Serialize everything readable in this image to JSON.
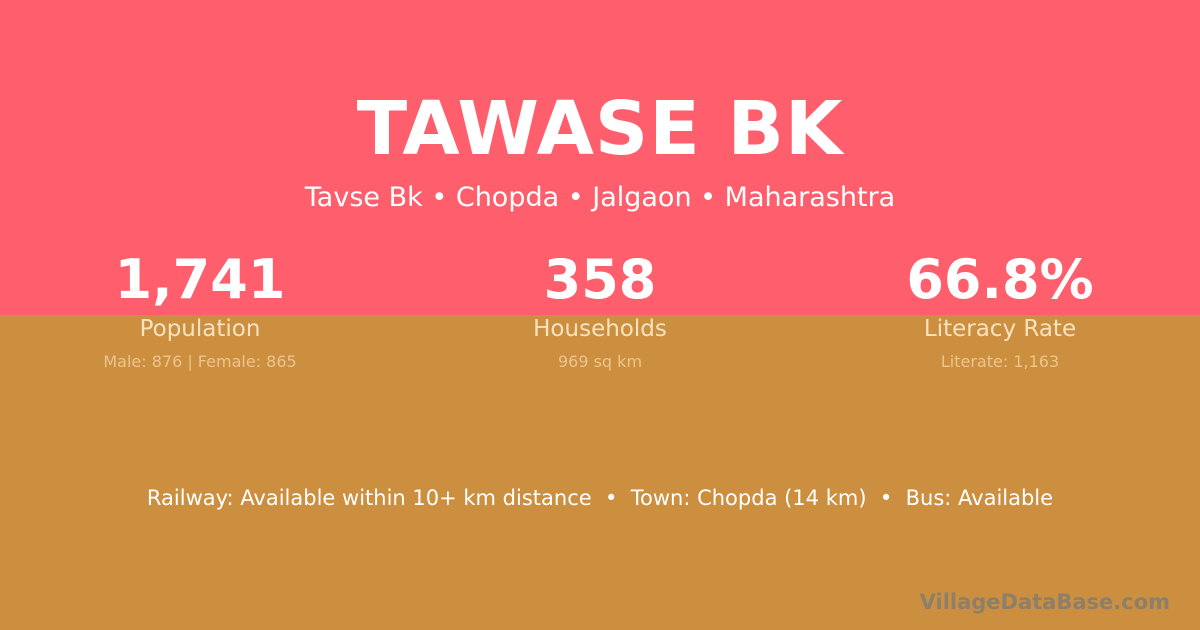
{
  "header": {
    "title": "TAWASE BK",
    "subtitle": "Tavse Bk • Chopda • Jalgaon • Maharashtra"
  },
  "stats": [
    {
      "value": "1,741",
      "label": "Population",
      "detail": "Male: 876 | Female: 865"
    },
    {
      "value": "358",
      "label": "Households",
      "detail": "969 sq km"
    },
    {
      "value": "66.8%",
      "label": "Literacy Rate",
      "detail": "Literate: 1,163"
    }
  ],
  "info": "Railway: Available within 10+ km distance  •  Town: Chopda (14 km)  •  Bus: Available",
  "logo": "VillageDataBase.com",
  "colors": {
    "top": "#ff5e6c",
    "bottom": "#cc8f3f"
  }
}
